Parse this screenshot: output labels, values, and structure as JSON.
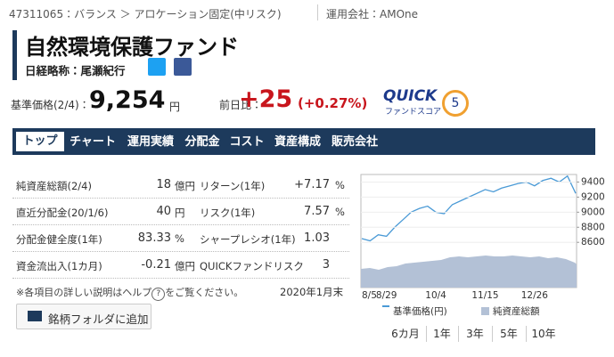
{
  "header": {
    "breadcrumb": "47311065：バランス ＞ アロケーション固定(中リスク)",
    "company": "運用会社：AMOne",
    "title": "自然環境保護ファンド",
    "nikkei": "日経略称：尾瀬紀行"
  },
  "price": {
    "label": "基準価格(2/4)：",
    "value": "9,254",
    "unit": "円",
    "change_label": "前日比：",
    "change": "+25",
    "change_pct": "(+0.27%)",
    "quick": "QUICK",
    "quick_sub": "ファンドスコア",
    "score": "5"
  },
  "tabs": [
    "トップ",
    "チャート",
    "運用実績",
    "分配金",
    "コスト",
    "資産構成",
    "販売会社"
  ],
  "table": {
    "rows": [
      [
        "純資産総額(2/4)",
        "18",
        "億円",
        "リターン(1年)",
        "+7.17",
        "%"
      ],
      [
        "直近分配金(20/1/6)",
        "40",
        "円",
        "リスク(1年)",
        "7.57",
        "%"
      ],
      [
        "分配金健全度(1年)",
        "83.33",
        "%",
        "シャープレシオ(1年)",
        "1.03",
        ""
      ],
      [
        "資金流出入(1カ月)",
        "-0.21",
        "億円",
        "QUICKファンドリスク",
        "3",
        ""
      ]
    ],
    "note": "※各項目の詳しい説明はヘルプ",
    "help": "?",
    "note_end": "をご覧ください。",
    "date": "2020年1月末"
  },
  "button": "銘柄フォルダに追加",
  "chart": {
    "type": "line",
    "categories": [
      "8/5",
      null,
      null,
      "8/29",
      null,
      null,
      null,
      null,
      null,
      "10/4",
      null,
      null,
      null,
      null,
      null,
      "11/15",
      null,
      null,
      null,
      null,
      null,
      "12/26",
      null,
      null,
      null,
      null,
      null
    ],
    "series": [
      {
        "name": "基準価格(円)",
        "color": "#4a9ad6",
        "values": [
          8650,
          8620,
          8700,
          8680,
          8800,
          8900,
          9000,
          9050,
          9080,
          9000,
          8980,
          9100,
          9150,
          9200,
          9250,
          9300,
          9270,
          9320,
          9350,
          9380,
          9400,
          9350,
          9420,
          9450,
          9400,
          9480,
          9250
        ]
      }
    ],
    "area_name": "純資産総額",
    "ylim": [
      8000,
      9500
    ],
    "yticks": [
      8600,
      8800,
      9000,
      9200,
      9400
    ]
  },
  "periods": [
    "6カ月",
    "1年",
    "3年",
    "5年",
    "10年"
  ]
}
